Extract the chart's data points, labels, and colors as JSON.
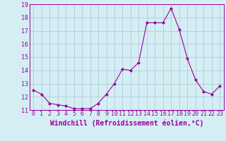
{
  "x": [
    0,
    1,
    2,
    3,
    4,
    5,
    6,
    7,
    8,
    9,
    10,
    11,
    12,
    13,
    14,
    15,
    16,
    17,
    18,
    19,
    20,
    21,
    22,
    23
  ],
  "y": [
    12.5,
    12.2,
    11.5,
    11.4,
    11.3,
    11.1,
    11.1,
    11.1,
    11.5,
    12.2,
    13.0,
    14.1,
    14.0,
    14.6,
    17.6,
    17.6,
    17.6,
    18.7,
    17.1,
    14.9,
    13.3,
    12.4,
    12.2,
    12.8
  ],
  "line_color": "#990099",
  "marker": "D",
  "marker_size": 2,
  "bg_color": "#d4eef4",
  "grid_color": "#b0ccd8",
  "xlabel": "Windchill (Refroidissement éolien,°C)",
  "ylim": [
    11,
    19
  ],
  "xlim": [
    -0.5,
    23.5
  ],
  "yticks": [
    11,
    12,
    13,
    14,
    15,
    16,
    17,
    18,
    19
  ],
  "xticks": [
    0,
    1,
    2,
    3,
    4,
    5,
    6,
    7,
    8,
    9,
    10,
    11,
    12,
    13,
    14,
    15,
    16,
    17,
    18,
    19,
    20,
    21,
    22,
    23
  ],
  "tick_color": "#990099",
  "tick_fontsize": 6,
  "xlabel_fontsize": 7,
  "label_color": "#990099",
  "spine_color": "#990099",
  "line_width": 0.8
}
